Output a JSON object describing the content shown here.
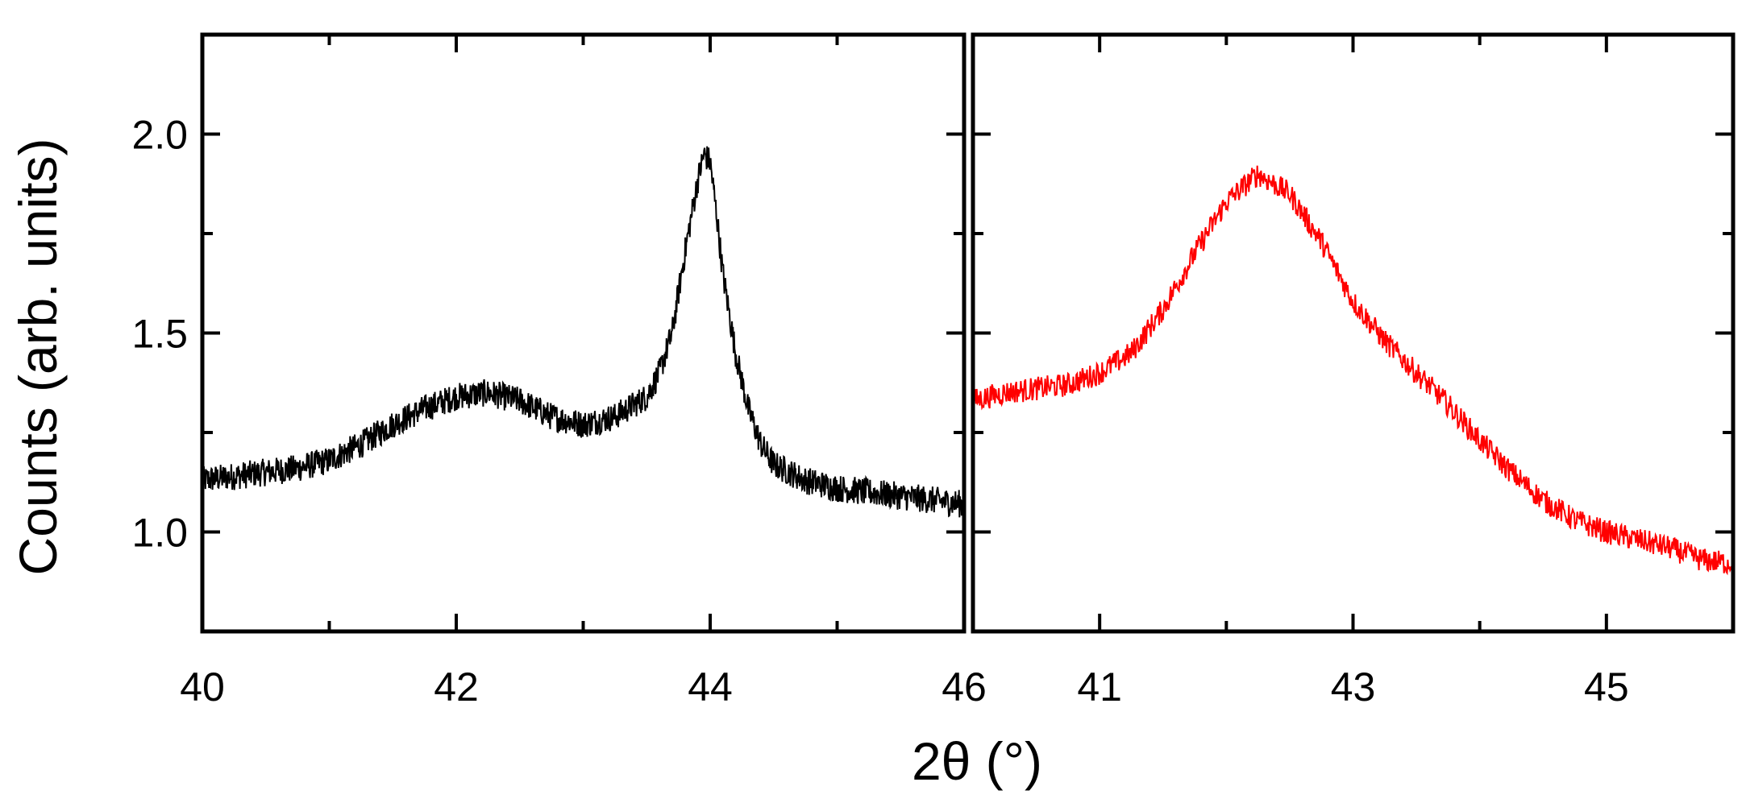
{
  "chart_data": [
    {
      "type": "line",
      "panel": "left",
      "xlabel": "2θ (°)",
      "ylabel": "Counts (arb. units)",
      "xlim": [
        40,
        46
      ],
      "ylim": [
        0.75,
        2.25
      ],
      "xticks_major": [
        "40",
        "42",
        "44",
        "46"
      ],
      "yticks_major": [
        "1.0",
        "1.5",
        "2.0"
      ],
      "series": [
        {
          "color": "#000000",
          "x": [
            40.0,
            40.25,
            40.5,
            40.75,
            41.0,
            41.25,
            41.5,
            41.75,
            42.0,
            42.25,
            42.5,
            42.75,
            43.0,
            43.25,
            43.5,
            43.6,
            43.7,
            43.8,
            43.9,
            43.95,
            44.0,
            44.05,
            44.1,
            44.2,
            44.3,
            44.4,
            44.5,
            44.75,
            45.0,
            45.25,
            45.5,
            45.75,
            46.0
          ],
          "y": [
            1.13,
            1.14,
            1.15,
            1.16,
            1.18,
            1.22,
            1.27,
            1.31,
            1.34,
            1.35,
            1.33,
            1.29,
            1.27,
            1.29,
            1.34,
            1.4,
            1.5,
            1.7,
            1.88,
            1.95,
            1.93,
            1.8,
            1.65,
            1.45,
            1.31,
            1.22,
            1.17,
            1.13,
            1.11,
            1.1,
            1.09,
            1.08,
            1.07
          ]
        }
      ]
    },
    {
      "type": "line",
      "panel": "right",
      "xlim": [
        40,
        46
      ],
      "ylim": [
        0.75,
        2.25
      ],
      "xticks_major": [
        "41",
        "43",
        "45"
      ],
      "series": [
        {
          "color": "#ff0000",
          "x": [
            40.0,
            40.25,
            40.5,
            40.75,
            41.0,
            41.25,
            41.5,
            41.75,
            42.0,
            42.25,
            42.5,
            42.75,
            43.0,
            43.25,
            43.5,
            43.75,
            44.0,
            44.25,
            44.5,
            44.75,
            45.0,
            45.25,
            45.5,
            45.75,
            46.0
          ],
          "y": [
            1.33,
            1.35,
            1.36,
            1.37,
            1.4,
            1.45,
            1.56,
            1.7,
            1.83,
            1.9,
            1.85,
            1.73,
            1.58,
            1.48,
            1.4,
            1.32,
            1.23,
            1.15,
            1.08,
            1.03,
            1.0,
            0.98,
            0.96,
            0.93,
            0.92
          ]
        }
      ]
    }
  ]
}
